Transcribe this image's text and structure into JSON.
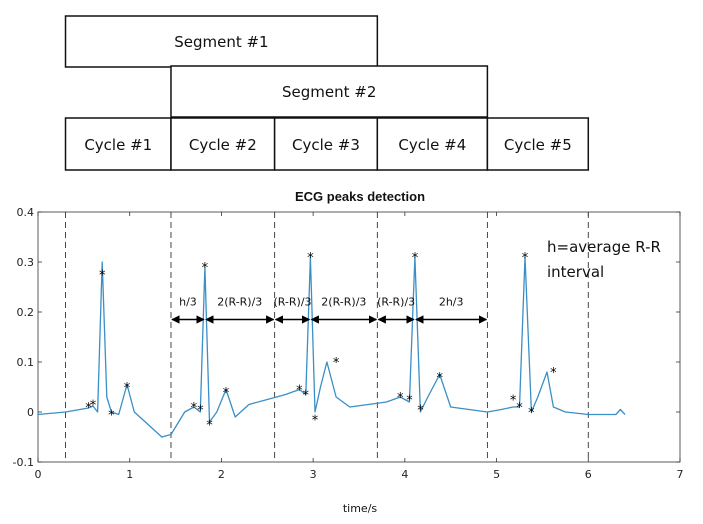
{
  "segments": [
    {
      "label": "Segment #1",
      "start": 0.3,
      "end": 3.7
    },
    {
      "label": "Segment #2",
      "start": 1.45,
      "end": 4.9
    }
  ],
  "cycles": [
    {
      "label": "Cycle #1",
      "start": 0.3,
      "end": 1.45
    },
    {
      "label": "Cycle #2",
      "start": 1.45,
      "end": 2.58
    },
    {
      "label": "Cycle #3",
      "start": 2.58,
      "end": 3.7
    },
    {
      "label": "Cycle #4",
      "start": 3.7,
      "end": 4.9
    },
    {
      "label": "Cycle #5",
      "start": 4.9,
      "end": 6.0
    }
  ],
  "chart_data": {
    "type": "line",
    "title": "ECG peaks detection",
    "xlabel": "time/s",
    "ylabel": "",
    "xlim": [
      0,
      7
    ],
    "ylim": [
      -0.1,
      0.4
    ],
    "xticks": [
      0,
      1,
      2,
      3,
      4,
      5,
      6,
      7
    ],
    "yticks": [
      -0.1,
      0,
      0.1,
      0.2,
      0.3,
      0.4
    ],
    "ytick_labels": [
      "-0.1",
      "0",
      "0.1",
      "0.2",
      "0.3",
      "0.4"
    ],
    "grid": false,
    "series_color": "#3a8fc7",
    "marker_color": "#000000",
    "series": [
      {
        "values_x": [
          0,
          0.3,
          0.55,
          0.6,
          0.65,
          0.7,
          0.75,
          0.8,
          0.88,
          0.97,
          1.05,
          1.2,
          1.35,
          1.45,
          1.6,
          1.7,
          1.77,
          1.82,
          1.87,
          1.95,
          2.05,
          2.15,
          2.3,
          2.5,
          2.7,
          2.85,
          2.92,
          2.97,
          3.02,
          3.08,
          3.15,
          3.25,
          3.4,
          3.6,
          3.8,
          3.95,
          4.05,
          4.11,
          4.17,
          4.25,
          4.38,
          4.5,
          4.7,
          4.9,
          5.05,
          5.18,
          5.25,
          5.31,
          5.38,
          5.45,
          5.55,
          5.62,
          5.75,
          6.0,
          6.3,
          6.35,
          6.4
        ],
        "values_y": [
          -0.005,
          0.0,
          0.008,
          0.012,
          0.0,
          0.3,
          0.03,
          0.0,
          -0.005,
          0.055,
          0.0,
          -0.025,
          -0.05,
          -0.045,
          0.0,
          0.01,
          0.0,
          0.29,
          -0.02,
          0.0,
          0.045,
          -0.01,
          0.015,
          0.025,
          0.035,
          0.045,
          0.035,
          0.31,
          0.0,
          0.05,
          0.1,
          0.03,
          0.01,
          0.015,
          0.02,
          0.03,
          0.02,
          0.31,
          0.0,
          0.03,
          0.075,
          0.01,
          0.005,
          0.0,
          0.005,
          0.01,
          0.01,
          0.31,
          0.0,
          0.03,
          0.08,
          0.01,
          0.0,
          -0.005,
          -0.005,
          0.005,
          -0.005
        ]
      }
    ],
    "peaks_x": [
      0.55,
      0.6,
      0.7,
      0.8,
      0.97,
      1.7,
      1.77,
      1.82,
      1.87,
      2.05,
      2.85,
      2.92,
      2.97,
      3.02,
      3.25,
      3.95,
      4.05,
      4.11,
      4.17,
      4.38,
      5.18,
      5.25,
      5.31,
      5.38,
      5.62
    ],
    "peaks_y": [
      0.01,
      0.015,
      0.275,
      -0.005,
      0.05,
      0.01,
      0.005,
      0.29,
      -0.025,
      0.04,
      0.045,
      0.035,
      0.31,
      -0.015,
      0.1,
      0.03,
      0.025,
      0.31,
      0.005,
      0.07,
      0.025,
      0.01,
      0.31,
      0.0,
      0.08
    ],
    "boundaries_x": [
      0.3,
      1.45,
      2.58,
      3.7,
      4.9,
      6.0
    ],
    "intervals": [
      {
        "label": "h/3",
        "start": 1.45,
        "end": 1.82,
        "y": 0.185
      },
      {
        "label": "2(R-R)/3",
        "start": 1.82,
        "end": 2.58,
        "y": 0.185
      },
      {
        "label": "(R-R)/3",
        "start": 2.58,
        "end": 2.97,
        "y": 0.185
      },
      {
        "label": "2(R-R)/3",
        "start": 2.97,
        "end": 3.7,
        "y": 0.185
      },
      {
        "label": "(R-R)/3",
        "start": 3.7,
        "end": 4.11,
        "y": 0.185
      },
      {
        "label": "2h/3",
        "start": 4.11,
        "end": 4.9,
        "y": 0.185
      }
    ],
    "annotation": {
      "line1": "h=average R-R",
      "line2": "interval",
      "x": 5.55,
      "y": 0.33
    }
  }
}
